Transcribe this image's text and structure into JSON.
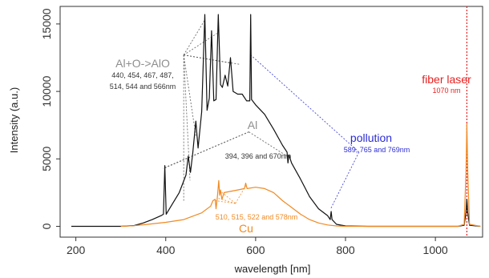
{
  "chart_data": {
    "type": "line",
    "xlabel": "wavelength [nm]",
    "ylabel": "Intensity (a.u.)",
    "xlim": [
      165,
      1105
    ],
    "ylim": [
      -800,
      16300
    ],
    "x_ticks": [
      200,
      400,
      600,
      800,
      1000
    ],
    "y_ticks": [
      0,
      5000,
      10000,
      15000
    ],
    "grid": false,
    "series": [
      {
        "color": "#111111",
        "points": [
          [
            190,
            0
          ],
          [
            300,
            0
          ],
          [
            330,
            60
          ],
          [
            350,
            250
          ],
          [
            370,
            500
          ],
          [
            390,
            800
          ],
          [
            395,
            900
          ],
          [
            398,
            4500
          ],
          [
            401,
            900
          ],
          [
            410,
            1400
          ],
          [
            430,
            2500
          ],
          [
            445,
            3800
          ],
          [
            450,
            5200
          ],
          [
            455,
            4000
          ],
          [
            460,
            5400
          ],
          [
            467,
            7800
          ],
          [
            472,
            5800
          ],
          [
            480,
            8500
          ],
          [
            487,
            15700
          ],
          [
            492,
            8600
          ],
          [
            497,
            9500
          ],
          [
            502,
            14500
          ],
          [
            507,
            9300
          ],
          [
            512,
            9400
          ],
          [
            517,
            15700
          ],
          [
            522,
            10500
          ],
          [
            526,
            10300
          ],
          [
            532,
            11200
          ],
          [
            538,
            10400
          ],
          [
            544,
            12500
          ],
          [
            550,
            10000
          ],
          [
            560,
            9800
          ],
          [
            570,
            9800
          ],
          [
            580,
            9300
          ],
          [
            587,
            9300
          ],
          [
            589,
            15700
          ],
          [
            591,
            9400
          ],
          [
            600,
            9000
          ],
          [
            620,
            8300
          ],
          [
            640,
            7200
          ],
          [
            660,
            6000
          ],
          [
            670,
            5500
          ],
          [
            672,
            4700
          ],
          [
            674,
            5300
          ],
          [
            680,
            4700
          ],
          [
            700,
            3500
          ],
          [
            720,
            2200
          ],
          [
            740,
            1300
          ],
          [
            760,
            800
          ],
          [
            766,
            500
          ],
          [
            768,
            1100
          ],
          [
            770,
            500
          ],
          [
            780,
            150
          ],
          [
            800,
            30
          ],
          [
            850,
            0
          ],
          [
            1050,
            0
          ],
          [
            1064,
            80
          ],
          [
            1068,
            1000
          ],
          [
            1070,
            2000
          ],
          [
            1072,
            1000
          ],
          [
            1076,
            80
          ],
          [
            1100,
            0
          ]
        ]
      },
      {
        "color": "#f08a24",
        "points": [
          [
            300,
            0
          ],
          [
            330,
            50
          ],
          [
            360,
            150
          ],
          [
            400,
            300
          ],
          [
            440,
            500
          ],
          [
            480,
            1000
          ],
          [
            500,
            1500
          ],
          [
            505,
            1900
          ],
          [
            510,
            2000
          ],
          [
            512,
            1300
          ],
          [
            515,
            2200
          ],
          [
            518,
            3400
          ],
          [
            520,
            2300
          ],
          [
            522,
            2700
          ],
          [
            525,
            2000
          ],
          [
            530,
            2500
          ],
          [
            560,
            2700
          ],
          [
            575,
            2800
          ],
          [
            578,
            3200
          ],
          [
            581,
            2800
          ],
          [
            600,
            2900
          ],
          [
            620,
            2800
          ],
          [
            640,
            2500
          ],
          [
            660,
            1900
          ],
          [
            680,
            1400
          ],
          [
            700,
            900
          ],
          [
            720,
            500
          ],
          [
            740,
            250
          ],
          [
            760,
            100
          ],
          [
            780,
            30
          ],
          [
            800,
            0
          ],
          [
            1050,
            0
          ],
          [
            1064,
            150
          ],
          [
            1068,
            4000
          ],
          [
            1070,
            7600
          ],
          [
            1072,
            4000
          ],
          [
            1076,
            150
          ],
          [
            1100,
            0
          ]
        ]
      }
    ],
    "reference_line": {
      "x": 1070,
      "color": "#e82020"
    },
    "annotations": [
      {
        "id": "alo",
        "title": "Al+O->AlO",
        "sub": [
          "440, 454, 467, 487,",
          "514, 544 and 566nm"
        ],
        "color_title": "#8e8e8e",
        "color_sub": "#333333",
        "anchor": [
          440,
          12700
        ],
        "lines_to": [
          [
            440,
            1900
          ],
          [
            454,
            3400
          ],
          [
            467,
            6700
          ],
          [
            487,
            15300
          ],
          [
            514,
            14300
          ],
          [
            544,
            12100
          ],
          [
            566,
            12000
          ]
        ]
      },
      {
        "id": "al",
        "title": "Al",
        "sub": [
          "394, 396 and 670nm"
        ],
        "color_title": "#8e8e8e",
        "color_sub": "#333333",
        "anchor": [
          585,
          7000
        ],
        "lines_to": [
          [
            394,
            4300
          ],
          [
            396,
            4300
          ],
          [
            670,
            5200
          ]
        ]
      },
      {
        "id": "pollution",
        "title": "pollution",
        "sub": [
          "589, 765 and 769nm"
        ],
        "color_title": "#2b2bd6",
        "color_sub": "#2b2bd6",
        "anchor": [
          830,
          5500
        ],
        "lines_to": [
          [
            589,
            12700
          ],
          [
            767,
            1300
          ]
        ]
      },
      {
        "id": "cu",
        "title": "Cu",
        "sub": [
          "510, 515, 522 and 578nm"
        ],
        "color_title": "#f08a24",
        "color_sub": "#f08a24",
        "anchor": [
          555,
          1700
        ],
        "lines_to": [
          [
            510,
            1900
          ],
          [
            515,
            2100
          ],
          [
            522,
            2600
          ],
          [
            578,
            3000
          ]
        ]
      },
      {
        "id": "fiber",
        "title": "fiber laser",
        "sub": [
          "1070 nm"
        ],
        "color_title": "#e82020",
        "color_sub": "#e82020",
        "anchor": null,
        "lines_to": []
      }
    ]
  }
}
